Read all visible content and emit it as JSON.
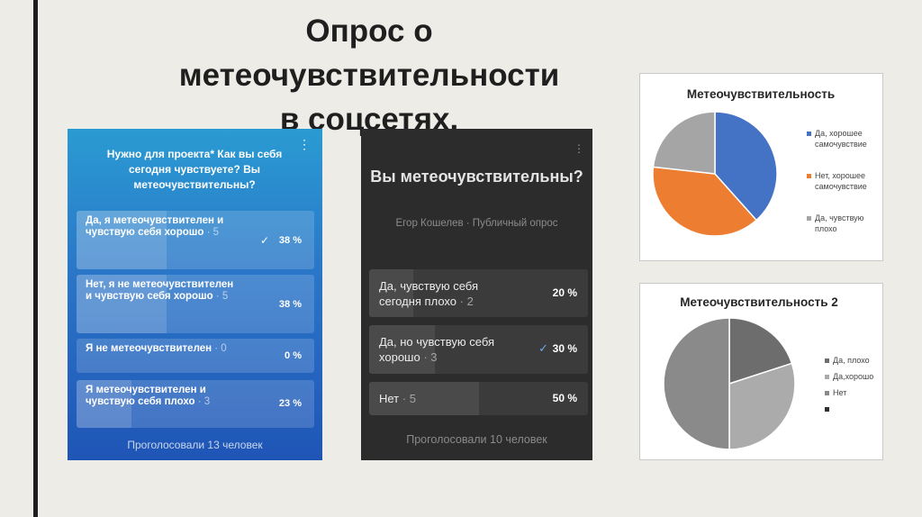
{
  "slide": {
    "title_line1": "Опрос о метеочувствительности",
    "title_line2": "в соцсетях."
  },
  "poll_blue": {
    "menu_icon": "⋮",
    "question": "Нужно для проекта* Как вы себя сегодня чувствуете? Вы метеочувствительны?",
    "options": [
      {
        "label": "Да, я метеочувствителен и чувствую себя хорошо",
        "votes": "· 5",
        "percent": "38 %",
        "value": 38,
        "checked": true
      },
      {
        "label": "Нет, я не метеочувствителен и чувствую себя хорошо",
        "votes": "· 5",
        "percent": "38 %",
        "value": 38,
        "checked": false
      },
      {
        "label": "Я не метеочувствителен",
        "votes": "· 0",
        "percent": "0 %",
        "value": 0,
        "checked": false
      },
      {
        "label": "Я метеочувствителен и чувствую себя плохо",
        "votes": "· 3",
        "percent": "23 %",
        "value": 23,
        "checked": false
      }
    ],
    "total": "Проголосовали 13 человек"
  },
  "poll_dark": {
    "menu_icon": "⋮",
    "question": "Вы метеочувствительны?",
    "author": "Егор Кошелев · Публичный опрос",
    "options": [
      {
        "label": "Да, чувствую себя сегодня плохо",
        "votes": "· 2",
        "percent": "20 %",
        "value": 20,
        "checked": false
      },
      {
        "label": "Да, но чувствую себя хорошо",
        "votes": "· 3",
        "percent": "30 %",
        "value": 30,
        "checked": true
      },
      {
        "label": "Нет",
        "votes": "· 5",
        "percent": "50 %",
        "value": 50,
        "checked": false
      }
    ],
    "total": "Проголосовали 10 человек"
  },
  "check_icon": "✓",
  "chart_data": [
    {
      "type": "pie",
      "title": "Метеочувствительность",
      "categories": [
        "Да, хорошее самочувствие",
        "Нет, хорошее самочувствие",
        "Да, чувствую плохо"
      ],
      "values": [
        38,
        38,
        23
      ],
      "colors": [
        "#4472c4",
        "#ed7d31",
        "#a5a5a5"
      ],
      "legend_lines": [
        [
          "Да, хорошее",
          "самочувствие"
        ],
        [
          "Нет, хорошее",
          "самочувствие"
        ],
        [
          "Да, чувствую",
          "плохо"
        ]
      ],
      "legend": "right"
    },
    {
      "type": "pie",
      "title": "Метеочувствительность 2",
      "categories": [
        "Да, плохо",
        "Да,хорошо",
        "Нет",
        ""
      ],
      "values": [
        20,
        30,
        50,
        0
      ],
      "colors": [
        "#6d6d6d",
        "#ababab",
        "#8a8a8a",
        "#2f2f2f"
      ],
      "legend_lines": [
        [
          "Да, плохо"
        ],
        [
          "Да,хорошо"
        ],
        [
          "Нет"
        ],
        [
          ""
        ]
      ],
      "legend": "right"
    }
  ]
}
